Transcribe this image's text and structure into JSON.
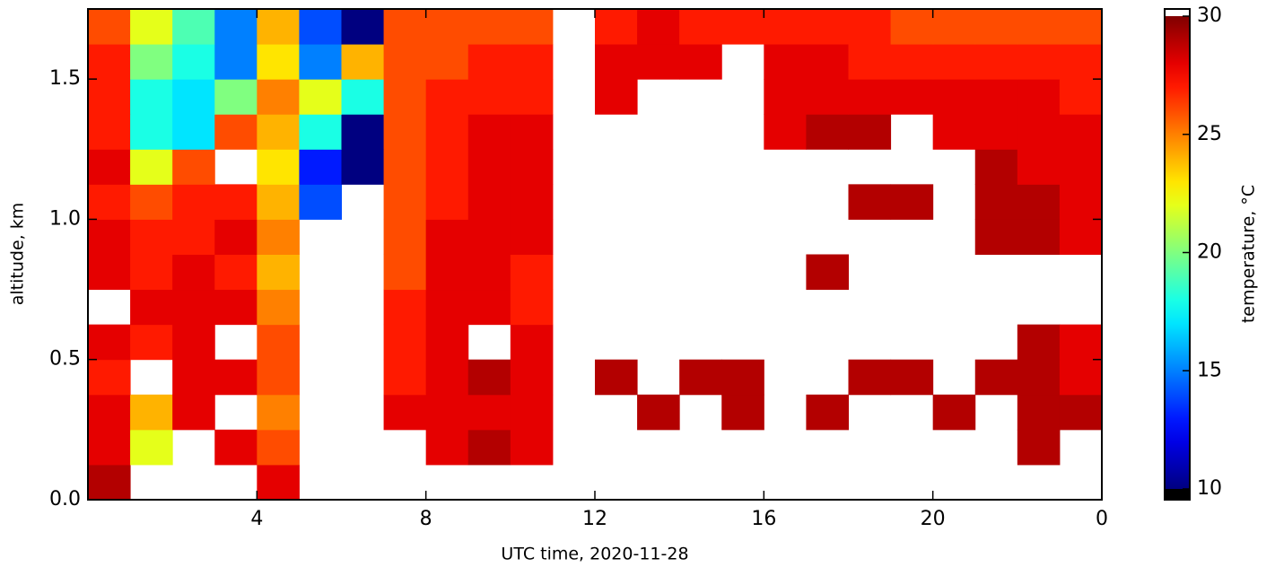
{
  "chart_data": {
    "type": "heatmap",
    "xlabel": "UTC time,  2020-11-28",
    "ylabel": "altitude, km",
    "xbins": [
      0,
      1,
      2,
      3,
      4,
      5,
      6,
      7,
      8,
      9,
      10,
      11,
      12,
      13,
      14,
      15,
      16,
      17,
      18,
      19,
      20,
      21,
      22,
      23,
      24
    ],
    "ybins": [
      0,
      0.125,
      0.25,
      0.375,
      0.5,
      0.625,
      0.75,
      0.875,
      1.0,
      1.125,
      1.25,
      1.375,
      1.5,
      1.625,
      1.75
    ],
    "xlim": [
      0,
      24
    ],
    "ylim": [
      0,
      1.75
    ],
    "xticks": [
      4,
      8,
      12,
      16,
      20,
      {
        "value": 24,
        "label": "0"
      }
    ],
    "yticks": [
      {
        "value": 0,
        "label": "0.0"
      },
      0.5,
      {
        "value": 1,
        "label": "1.0"
      },
      1.5
    ],
    "z": [
      [
        29,
        null,
        null,
        null,
        28,
        null,
        null,
        null,
        null,
        null,
        null,
        null,
        null,
        null,
        null,
        null,
        null,
        null,
        null,
        null,
        null,
        null,
        null,
        null
      ],
      [
        28,
        22,
        null,
        28,
        26,
        null,
        null,
        null,
        28,
        29,
        28,
        null,
        null,
        null,
        null,
        null,
        null,
        null,
        null,
        null,
        null,
        null,
        29,
        null
      ],
      [
        28,
        24,
        28,
        null,
        25,
        null,
        null,
        28,
        28,
        28,
        28,
        null,
        null,
        29,
        null,
        29,
        null,
        29,
        null,
        null,
        29,
        null,
        29,
        29
      ],
      [
        27,
        null,
        28,
        28,
        26,
        null,
        null,
        27,
        28,
        29,
        28,
        null,
        29,
        null,
        29,
        29,
        null,
        null,
        29,
        29,
        null,
        29,
        29,
        28
      ],
      [
        28,
        27,
        28,
        null,
        26,
        null,
        null,
        27,
        28,
        null,
        28,
        null,
        null,
        null,
        null,
        null,
        null,
        null,
        null,
        null,
        null,
        null,
        29,
        28
      ],
      [
        null,
        28,
        28,
        28,
        25,
        null,
        null,
        27,
        28,
        28,
        27,
        null,
        null,
        null,
        null,
        null,
        null,
        null,
        null,
        null,
        null,
        null,
        null,
        null
      ],
      [
        28,
        27,
        28,
        27,
        24,
        null,
        null,
        26,
        28,
        28,
        27,
        null,
        null,
        null,
        null,
        null,
        null,
        29,
        null,
        null,
        null,
        null,
        null,
        null
      ],
      [
        28,
        27,
        27,
        28,
        25,
        null,
        null,
        26,
        28,
        28,
        28,
        null,
        null,
        null,
        null,
        null,
        null,
        null,
        null,
        null,
        null,
        29,
        29,
        28
      ],
      [
        27,
        26,
        27,
        27,
        24,
        14,
        null,
        26,
        27,
        28,
        28,
        null,
        null,
        null,
        null,
        null,
        null,
        null,
        29,
        29,
        null,
        29,
        29,
        28
      ],
      [
        28,
        22,
        26,
        null,
        23,
        13,
        10,
        26,
        27,
        28,
        28,
        null,
        null,
        null,
        null,
        null,
        null,
        null,
        null,
        null,
        null,
        29,
        28,
        28
      ],
      [
        27,
        18,
        17,
        26,
        24,
        18,
        10,
        26,
        27,
        28,
        28,
        null,
        null,
        null,
        null,
        null,
        28,
        29,
        29,
        null,
        28,
        28,
        28,
        28
      ],
      [
        27,
        18,
        17,
        20,
        25,
        22,
        18,
        26,
        27,
        27,
        27,
        null,
        28,
        null,
        null,
        null,
        28,
        28,
        28,
        28,
        28,
        28,
        28,
        27
      ],
      [
        27,
        20,
        18,
        15,
        23,
        15,
        24,
        26,
        26,
        27,
        27,
        null,
        28,
        28,
        28,
        null,
        28,
        28,
        27,
        27,
        27,
        27,
        27,
        27
      ],
      [
        26,
        22,
        19,
        15,
        24,
        14,
        10,
        26,
        26,
        26,
        26,
        null,
        27,
        28,
        27,
        27,
        27,
        27,
        27,
        26,
        26,
        26,
        26,
        26
      ]
    ],
    "colorbar": {
      "label": "temperature, °C",
      "lim": [
        10,
        30
      ],
      "ticks": [
        10,
        15,
        20,
        25,
        30
      ]
    }
  }
}
